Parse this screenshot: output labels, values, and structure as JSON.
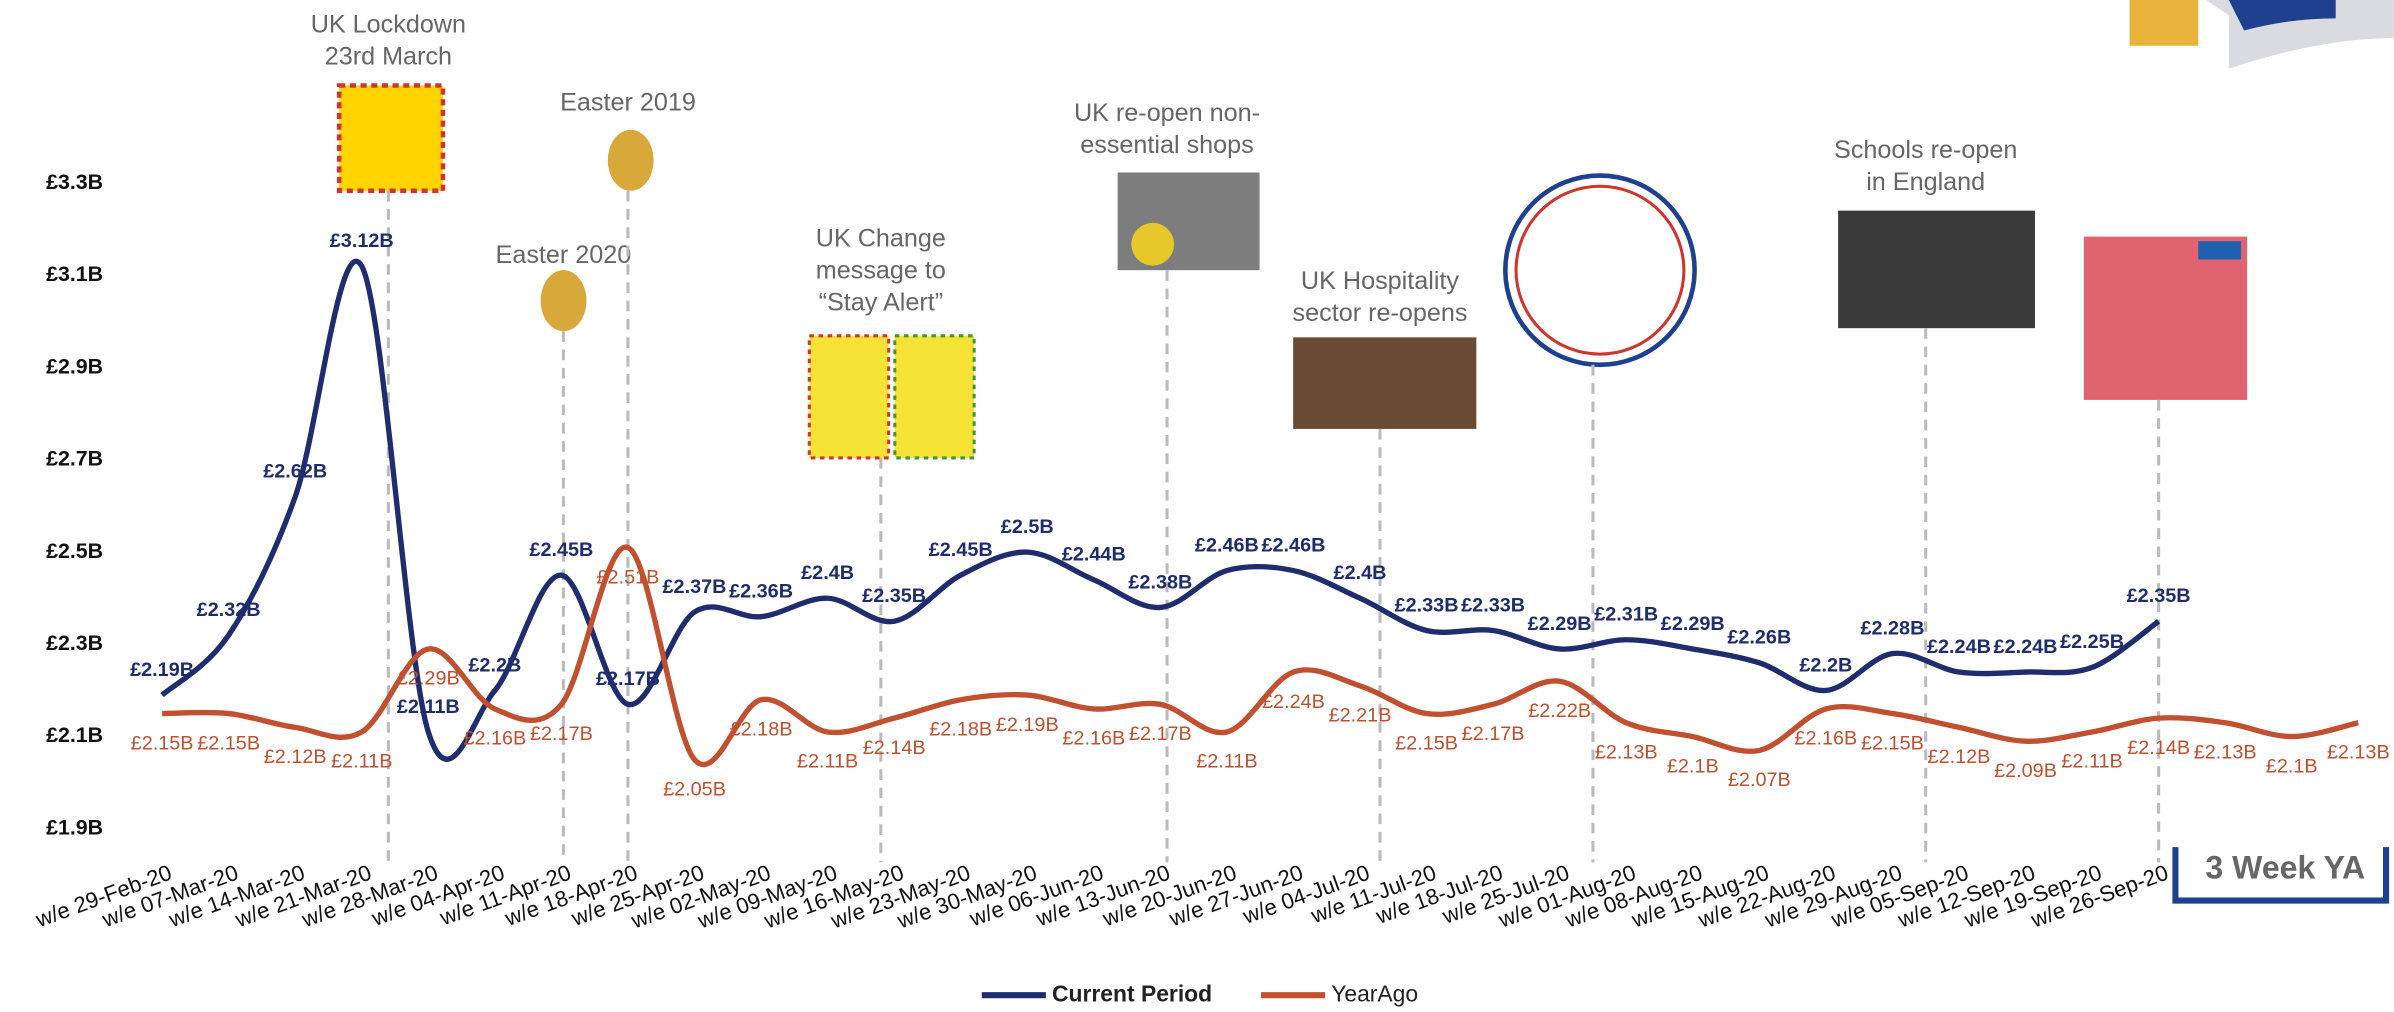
{
  "chart_data": {
    "type": "line",
    "categories": [
      "w/e 29-Feb-20",
      "w/e 07-Mar-20",
      "w/e 14-Mar-20",
      "w/e 21-Mar-20",
      "w/e 28-Mar-20",
      "w/e 04-Apr-20",
      "w/e 11-Apr-20",
      "w/e 18-Apr-20",
      "w/e 25-Apr-20",
      "w/e 02-May-20",
      "w/e 09-May-20",
      "w/e 16-May-20",
      "w/e 23-May-20",
      "w/e 30-May-20",
      "w/e 06-Jun-20",
      "w/e 13-Jun-20",
      "w/e 20-Jun-20",
      "w/e 27-Jun-20",
      "w/e 04-Jul-20",
      "w/e 11-Jul-20",
      "w/e 18-Jul-20",
      "w/e 25-Jul-20",
      "w/e 01-Aug-20",
      "w/e 08-Aug-20",
      "w/e 15-Aug-20",
      "w/e 22-Aug-20",
      "w/e 29-Aug-20",
      "w/e 05-Sep-20",
      "w/e 12-Sep-20",
      "w/e 19-Sep-20",
      "w/e 26-Sep-20",
      null,
      null,
      null
    ],
    "series": [
      {
        "name": "Current Period",
        "color": "#1f2d6e",
        "values": [
          2.19,
          2.32,
          2.62,
          3.12,
          2.11,
          2.2,
          2.45,
          2.17,
          2.37,
          2.36,
          2.4,
          2.35,
          2.45,
          2.5,
          2.44,
          2.38,
          2.46,
          2.46,
          2.4,
          2.33,
          2.33,
          2.29,
          2.31,
          2.29,
          2.26,
          2.2,
          2.28,
          2.24,
          2.24,
          2.25,
          2.35,
          null,
          null,
          null
        ],
        "value_labels": [
          "£2.19B",
          "£2.32B",
          "£2.62B",
          "£3.12B",
          "£2.11B",
          "£2.2B",
          "£2.45B",
          "£2.17B",
          "£2.37B",
          "£2.36B",
          "£2.4B",
          "£2.35B",
          "£2.45B",
          "£2.5B",
          "£2.44B",
          "£2.38B",
          "£2.46B",
          "£2.46B",
          "£2.4B",
          "£2.33B",
          "£2.33B",
          "£2.29B",
          "£2.31B",
          "£2.29B",
          "£2.26B",
          "£2.2B",
          "£2.28B",
          "£2.24B",
          "£2.24B",
          "£2.25B",
          "£2.35B",
          null,
          null,
          null
        ]
      },
      {
        "name": "YearAgo",
        "color": "#c0502f",
        "values": [
          2.15,
          2.15,
          2.12,
          2.11,
          2.29,
          2.16,
          2.17,
          2.51,
          2.05,
          2.18,
          2.11,
          2.14,
          2.18,
          2.19,
          2.16,
          2.17,
          2.11,
          2.24,
          2.21,
          2.15,
          2.17,
          2.22,
          2.13,
          2.1,
          2.07,
          2.16,
          2.15,
          2.12,
          2.09,
          2.11,
          2.14,
          2.13,
          2.1,
          2.13
        ],
        "value_labels": [
          "£2.15B",
          "£2.15B",
          "£2.12B",
          "£2.11B",
          "£2.29B",
          "£2.16B",
          "£2.17B",
          "£2.51B",
          "£2.05B",
          "£2.18B",
          "£2.11B",
          "£2.14B",
          "£2.18B",
          "£2.19B",
          "£2.16B",
          "£2.17B",
          "£2.11B",
          "£2.24B",
          "£2.21B",
          "£2.15B",
          "£2.17B",
          "£2.22B",
          "£2.13B",
          "£2.1B",
          "£2.07B",
          "£2.16B",
          "£2.15B",
          "£2.12B",
          "£2.09B",
          "£2.11B",
          "£2.14B",
          "£2.13B",
          "£2.1B",
          "£2.13B"
        ]
      }
    ],
    "ylim": [
      1.9,
      3.3
    ],
    "yticks": [
      {
        "value": 1.9,
        "label": "£1.9B"
      },
      {
        "value": 2.1,
        "label": "£2.1B"
      },
      {
        "value": 2.3,
        "label": "£2.3B"
      },
      {
        "value": 2.5,
        "label": "£2.5B"
      },
      {
        "value": 2.7,
        "label": "£2.7B"
      },
      {
        "value": 2.9,
        "label": "£2.9B"
      },
      {
        "value": 3.1,
        "label": "£3.1B"
      },
      {
        "value": 3.3,
        "label": "£3.3B"
      }
    ],
    "annotations": [
      {
        "text": [
          "UK Lockdown",
          "23rd March"
        ]
      },
      {
        "text": [
          "Easter 2020"
        ]
      },
      {
        "text": [
          "Easter 2019"
        ]
      },
      {
        "text": [
          "UK Change",
          "message to",
          "“Stay Alert”"
        ]
      },
      {
        "text": [
          "UK re-open non-",
          "essential shops"
        ]
      },
      {
        "text": [
          "UK Hospitality",
          "sector re-opens"
        ]
      },
      {
        "text": [
          "Schools re-open",
          "in England"
        ]
      }
    ],
    "box_label": "3 Week YA"
  }
}
